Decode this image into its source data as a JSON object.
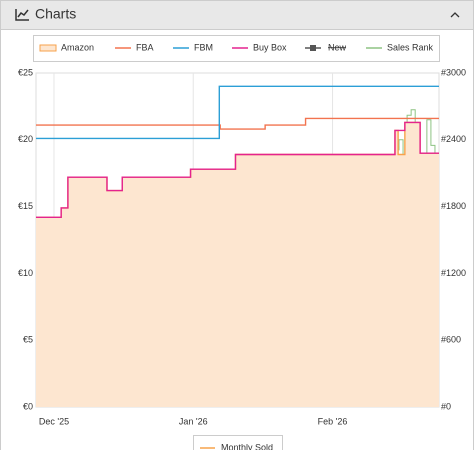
{
  "panel": {
    "title": "Charts"
  },
  "chart_data": {
    "type": "step",
    "xlim": [
      -4,
      85.7
    ],
    "xticks": [
      {
        "value": 0,
        "label": "Dec '25"
      },
      {
        "value": 31,
        "label": "Jan '26"
      },
      {
        "value": 62,
        "label": "Feb '26"
      }
    ],
    "ylim": [
      0,
      25
    ],
    "yticks": [
      {
        "value": 0,
        "label": "€0"
      },
      {
        "value": 5,
        "label": "€5"
      },
      {
        "value": 10,
        "label": "€10"
      },
      {
        "value": 15,
        "label": "€15"
      },
      {
        "value": 20,
        "label": "€20"
      },
      {
        "value": 25,
        "label": "€25"
      }
    ],
    "y2lim": [
      0,
      3000
    ],
    "y2ticks": [
      {
        "value": 0,
        "label": "#0"
      },
      {
        "value": 600,
        "label": "#600"
      },
      {
        "value": 1200,
        "label": "#1200"
      },
      {
        "value": 1800,
        "label": "#1800"
      },
      {
        "value": 2400,
        "label": "#2400"
      },
      {
        "value": 3000,
        "label": "#3000"
      }
    ],
    "grid": "x",
    "series": [
      {
        "name": "Amazon",
        "color": "#f7a24b",
        "fill": "#fde6d0",
        "area": true,
        "x": [
          -4,
          1.6,
          3.1,
          11.8,
          15.2,
          30.4,
          40.4,
          75.9,
          76.6,
          78.1,
          81.5
        ],
        "values": [
          14.2,
          14.9,
          17.2,
          16.2,
          17.2,
          17.8,
          18.9,
          20.7,
          18.9,
          21.3,
          19.0
        ]
      },
      {
        "name": "FBA",
        "color": "#f2734f",
        "x": [
          -4,
          37,
          47,
          56
        ],
        "values": [
          21.1,
          20.8,
          21.1,
          21.6
        ]
      },
      {
        "name": "FBM",
        "color": "#2c9fd6",
        "x": [
          -4,
          36.8
        ],
        "values": [
          20.1,
          24.0
        ]
      },
      {
        "name": "Buy Box",
        "color": "#e4238f",
        "x": [
          -4,
          1.6,
          3.1,
          11.8,
          15.2,
          30.4,
          40.4,
          75.9,
          78.1,
          81.5
        ],
        "values": [
          14.2,
          14.9,
          17.2,
          16.2,
          17.2,
          17.8,
          18.9,
          20.7,
          21.3,
          19.0
        ]
      },
      {
        "name": "New",
        "color": "#555555",
        "hidden": true,
        "x": [],
        "values": []
      },
      {
        "name": "Sales Rank",
        "color": "#8dc383",
        "axis": "y2",
        "x": [
          -4,
          -2.5,
          -1.8,
          -0.4,
          1.1,
          2.7,
          4.0,
          5.4,
          6.7,
          7.4,
          8.7,
          9.4,
          10.0,
          11.2,
          11.8,
          12.5,
          12.7,
          14.1,
          15.4,
          17.4,
          18.8,
          19.4,
          21.0,
          22.3,
          23.0,
          24.3,
          25.7,
          27.0,
          28.8,
          29.7,
          31.0,
          33.0,
          33.9,
          34.6,
          36.8,
          39.7,
          41.3,
          43.8,
          44.6,
          46.2,
          46.9,
          48.4,
          49.3,
          52.0,
          53.3,
          54.9,
          55.8,
          57.8,
          58.7,
          60.5,
          63.2,
          65.0,
          67.0,
          68.5,
          70.3,
          72.1,
          73.9,
          75.9,
          76.8,
          77.7,
          78.6,
          79.5,
          80.4,
          81.3,
          83.0,
          83.9,
          84.8
        ],
        "values": [
          820,
          820,
          590,
          650,
          920,
          1100,
          1280,
          1330,
          1280,
          1590,
          1590,
          1720,
          1320,
          1810,
          1680,
          960,
          150,
          330,
          780,
          960,
          1100,
          920,
          1280,
          1140,
          1410,
          1090,
          1280,
          1280,
          870,
          1140,
          1410,
          1500,
          1630,
          1360,
          1310,
          1590,
          1810,
          1950,
          1630,
          1500,
          1860,
          1610,
          1720,
          1450,
          1340,
          1550,
          1700,
          1990,
          1860,
          1660,
          1460,
          1590,
          1730,
          1640,
          1460,
          1610,
          2030,
          2310,
          2400,
          2170,
          2620,
          2670,
          2390,
          2080,
          2580,
          2350,
          2260
        ]
      }
    ],
    "second_legend": {
      "name": "Monthly Sold",
      "color": "#f7a24b"
    }
  }
}
